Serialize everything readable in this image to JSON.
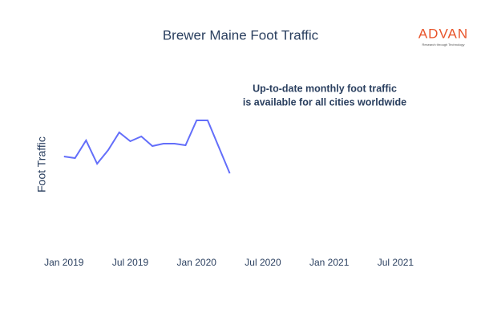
{
  "chart_data": {
    "type": "line",
    "title": "Brewer Maine Foot Traffic",
    "y_label": "Foot Traffic",
    "annotation": [
      "Up-to-date monthly foot traffic",
      "is available for all cities worldwide"
    ],
    "logo": "ADVAN",
    "logo_tagline": "Research through Technology",
    "x": [
      "2019-01",
      "2019-02",
      "2019-03",
      "2019-04",
      "2019-05",
      "2019-06",
      "2019-07",
      "2019-08",
      "2019-09",
      "2019-10",
      "2019-11",
      "2019-12",
      "2020-01",
      "2020-02",
      "2020-03",
      "2020-04"
    ],
    "series": [
      {
        "name": "Foot Traffic",
        "color": "#636efa",
        "values": [
          115,
          113,
          135,
          106,
          123,
          145,
          134,
          140,
          128,
          131,
          131,
          129,
          160,
          160,
          127,
          94
        ]
      }
    ],
    "xlim": [
      "2018-12",
      "2021-09"
    ],
    "ylim": [
      0,
      210
    ],
    "xticks": [
      {
        "value": "2019-01",
        "label": "Jan 2019"
      },
      {
        "value": "2019-07",
        "label": "Jul 2019"
      },
      {
        "value": "2020-01",
        "label": "Jan 2020"
      },
      {
        "value": "2020-07",
        "label": "Jul 2020"
      },
      {
        "value": "2021-01",
        "label": "Jan 2021"
      },
      {
        "value": "2021-07",
        "label": "Jul 2021"
      }
    ]
  }
}
